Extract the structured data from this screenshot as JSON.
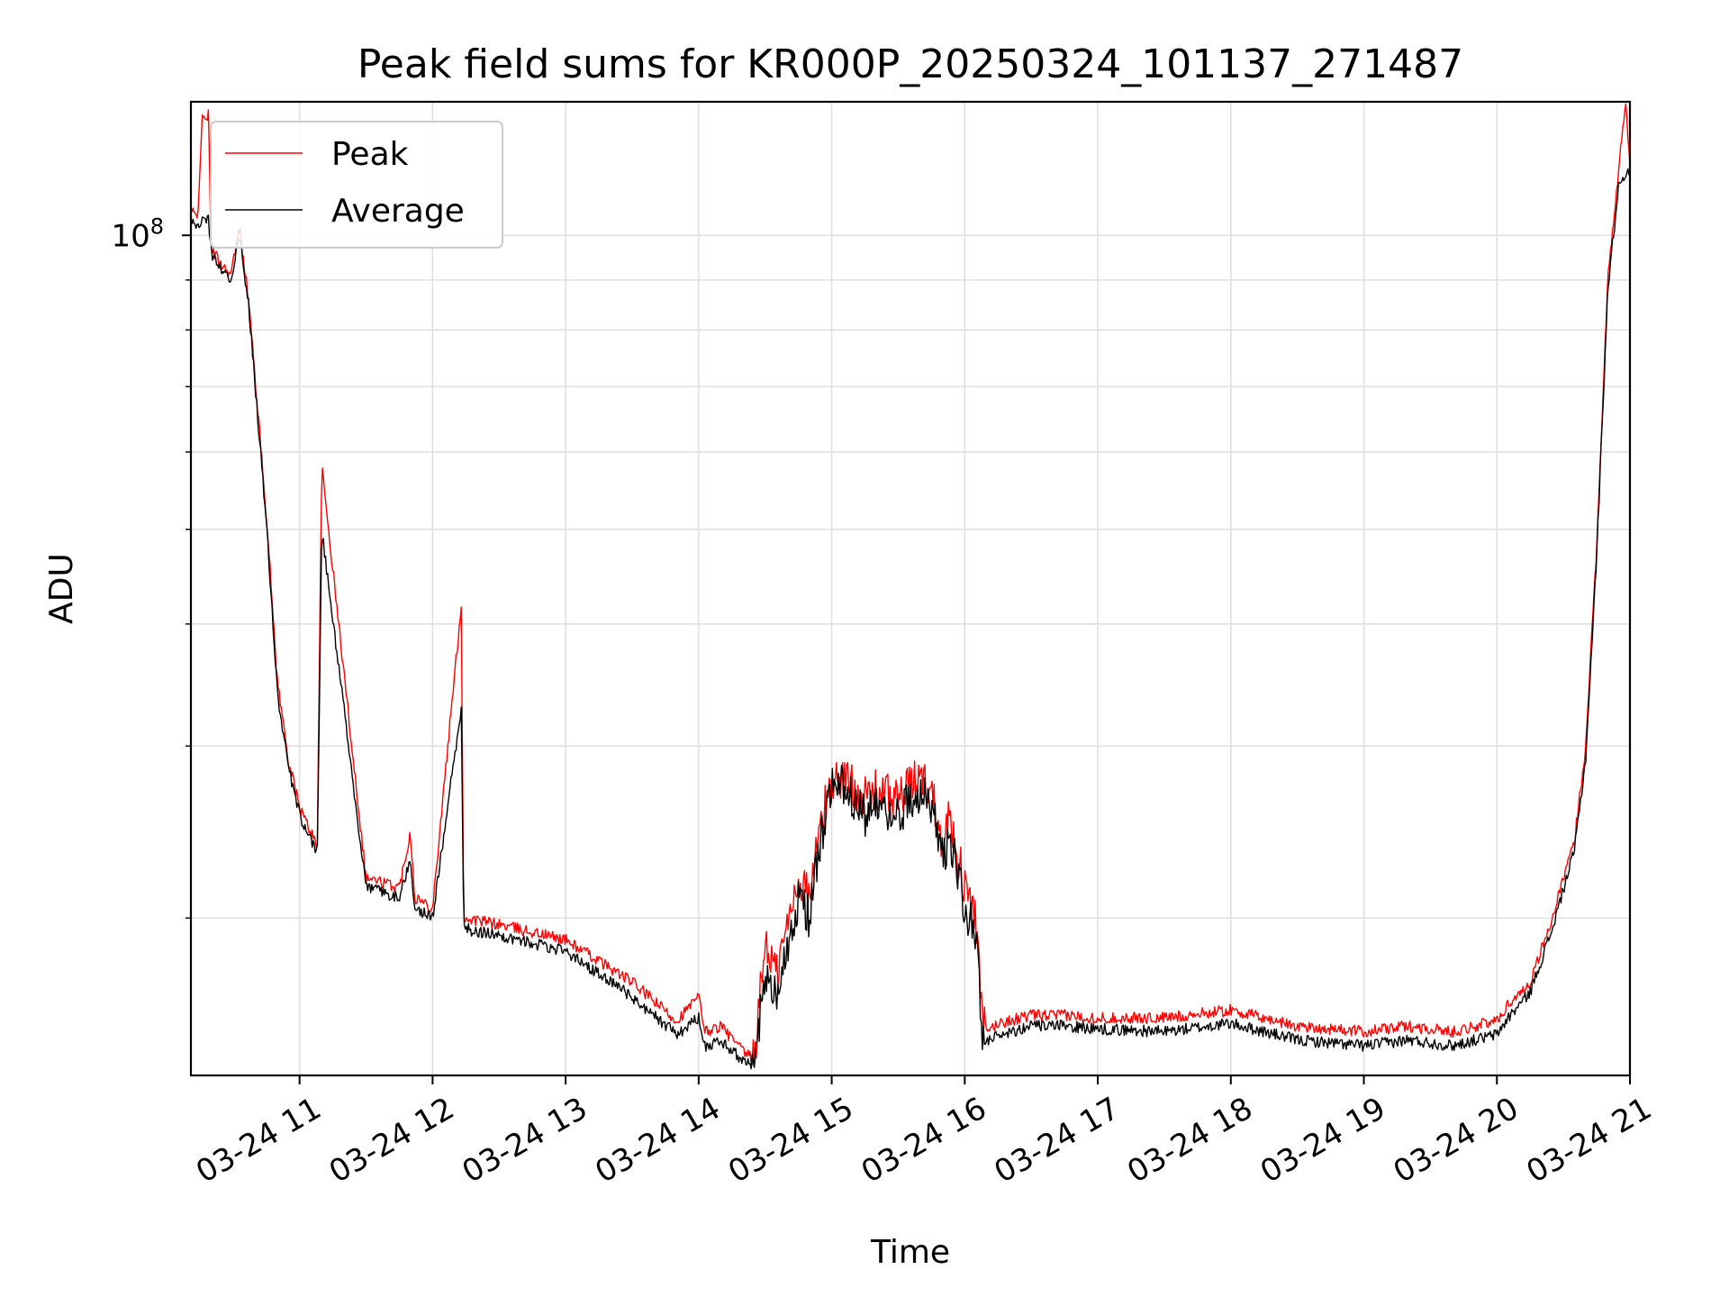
{
  "chart_data": {
    "type": "line",
    "title": "Peak field sums for KR000P_20250324_101137_271487",
    "xlabel": "Time",
    "ylabel": "ADU",
    "y_scale": "log",
    "x_range": [
      "2025-03-24 10:11",
      "2025-03-24 21:00"
    ],
    "ylim": [
      13800000,
      137000000
    ],
    "y_ticks": [
      {
        "value": 100000000,
        "base": "10",
        "exp": "8"
      }
    ],
    "x_ticks": [
      "03-24 11",
      "03-24 12",
      "03-24 13",
      "03-24 14",
      "03-24 15",
      "03-24 16",
      "03-24 17",
      "03-24 18",
      "03-24 19",
      "03-24 20",
      "03-24 21"
    ],
    "grid": true,
    "legend_position": "top-left",
    "colors": {
      "peak": "#ff0000",
      "average": "#000000",
      "grid": "#e0e0e0"
    },
    "series": [
      {
        "name": "Peak",
        "x": [
          "10:11",
          "10:14",
          "10:16",
          "10:19",
          "10:20",
          "10:24",
          "10:29",
          "10:33",
          "10:37",
          "10:45",
          "10:50",
          "10:55",
          "11:00",
          "11:05",
          "11:08",
          "11:10",
          "11:30",
          "11:45",
          "11:50",
          "11:52",
          "12:00",
          "12:13",
          "12:14",
          "12:30",
          "13:00",
          "13:30",
          "13:50",
          "14:00",
          "14:03",
          "14:10",
          "14:20",
          "14:25",
          "14:30",
          "14:35",
          "14:45",
          "14:50",
          "14:55",
          "15:00",
          "15:05",
          "15:15",
          "15:20",
          "15:30",
          "15:40",
          "15:45",
          "15:50",
          "15:53",
          "16:00",
          "16:05",
          "16:08",
          "16:10",
          "16:15",
          "16:30",
          "16:45",
          "17:00",
          "17:30",
          "18:00",
          "18:30",
          "19:00",
          "19:20",
          "19:40",
          "20:00",
          "20:05",
          "20:15",
          "20:25",
          "20:35",
          "20:40",
          "20:45",
          "20:50",
          "20:55",
          "20:58",
          "21:00"
        ],
        "y": [
          106000000,
          104000000,
          131000000,
          133000000,
          97000000,
          94000000,
          91000000,
          102000000,
          86000000,
          52000000,
          35000000,
          29000000,
          26000000,
          24500000,
          23800000,
          58000000,
          22000000,
          21500000,
          24500000,
          21000000,
          20500000,
          42000000,
          20000000,
          19700000,
          19000000,
          17200000,
          15700000,
          16600000,
          15300000,
          15500000,
          14600000,
          14300000,
          19000000,
          17500000,
          22000000,
          21000000,
          25000000,
          27500000,
          28000000,
          26500000,
          27000000,
          26500000,
          28000000,
          27000000,
          24000000,
          25500000,
          21500000,
          20000000,
          15600000,
          15300000,
          15600000,
          15900000,
          15900000,
          15800000,
          15800000,
          16100000,
          15500000,
          15300000,
          15500000,
          15300000,
          15700000,
          16300000,
          17200000,
          20000000,
          24000000,
          30000000,
          48000000,
          90000000,
          117000000,
          137000000,
          118000000
        ]
      },
      {
        "name": "Average",
        "x": [
          "10:11",
          "10:14",
          "10:16",
          "10:19",
          "10:20",
          "10:24",
          "10:29",
          "10:33",
          "10:37",
          "10:45",
          "10:50",
          "10:55",
          "11:00",
          "11:05",
          "11:08",
          "11:10",
          "11:30",
          "11:45",
          "11:50",
          "11:52",
          "12:00",
          "12:13",
          "12:14",
          "12:30",
          "13:00",
          "13:30",
          "13:50",
          "14:00",
          "14:03",
          "14:10",
          "14:20",
          "14:25",
          "14:30",
          "14:35",
          "14:45",
          "14:50",
          "14:55",
          "15:00",
          "15:05",
          "15:15",
          "15:20",
          "15:30",
          "15:40",
          "15:45",
          "15:50",
          "15:53",
          "16:00",
          "16:05",
          "16:08",
          "16:10",
          "16:15",
          "16:30",
          "16:45",
          "17:00",
          "17:30",
          "18:00",
          "18:30",
          "19:00",
          "19:20",
          "19:40",
          "20:00",
          "20:05",
          "20:15",
          "20:25",
          "20:35",
          "20:40",
          "20:45",
          "20:50",
          "20:55",
          "20:58",
          "21:00"
        ],
        "y": [
          104000000,
          102000000,
          103000000,
          104000000,
          96000000,
          93000000,
          90000000,
          100000000,
          85000000,
          51000000,
          34000000,
          28500000,
          25500000,
          24000000,
          23300000,
          50000000,
          21500000,
          21000000,
          23000000,
          20500000,
          20000000,
          33000000,
          19500000,
          19200000,
          18500000,
          16600000,
          15200000,
          15800000,
          14800000,
          15000000,
          14300000,
          14000000,
          17500000,
          16500000,
          21000000,
          20000000,
          24000000,
          27000000,
          27500000,
          25500000,
          26000000,
          25500000,
          27000000,
          26000000,
          23000000,
          24500000,
          20500000,
          19200000,
          15100000,
          14900000,
          15200000,
          15500000,
          15500000,
          15400000,
          15300000,
          15600000,
          15000000,
          14800000,
          15000000,
          14800000,
          15200000,
          15800000,
          16800000,
          19500000,
          23500000,
          29000000,
          47000000,
          88000000,
          113000000,
          116000000,
          115000000
        ]
      }
    ]
  }
}
